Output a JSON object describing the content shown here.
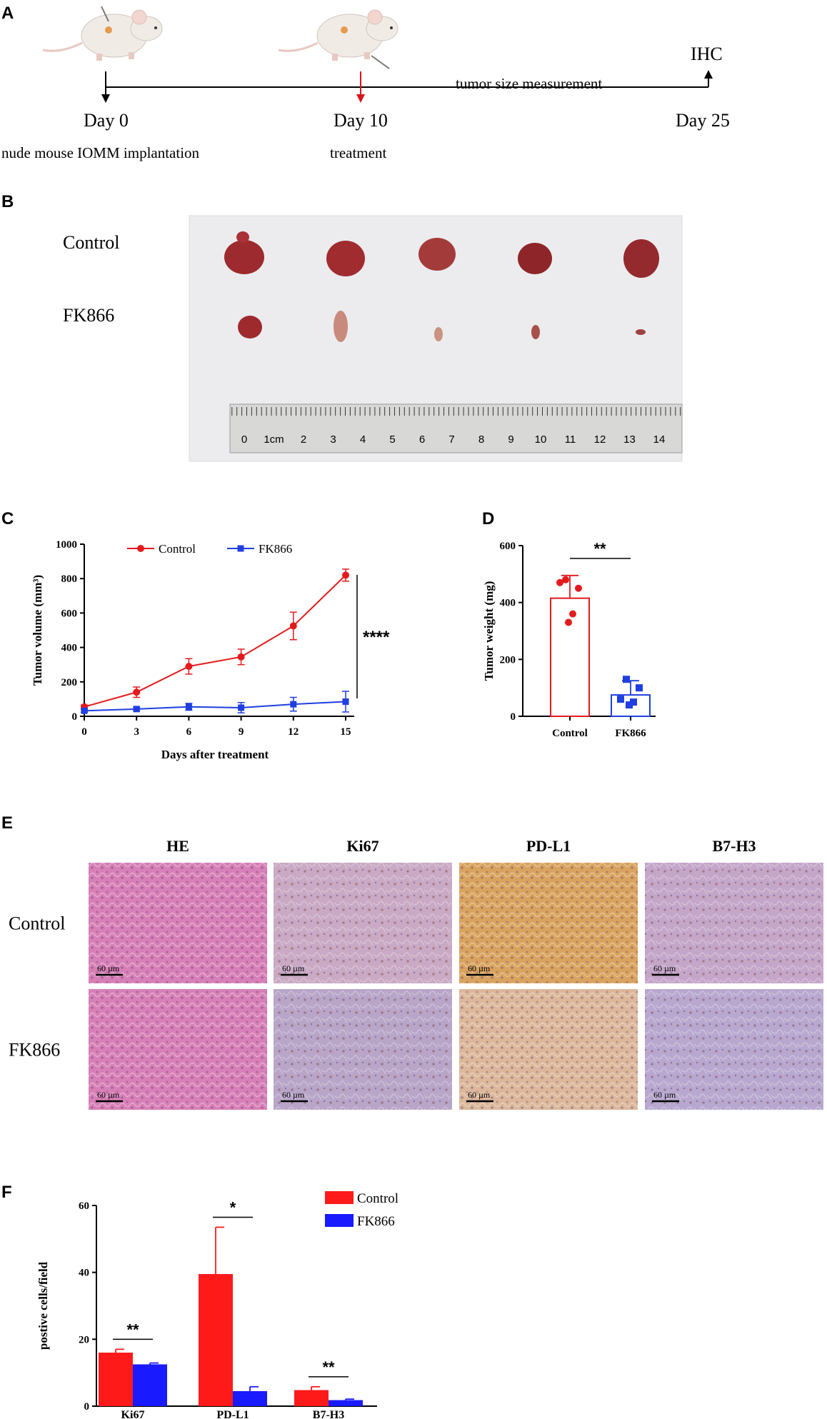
{
  "panels": {
    "A": {
      "letter": "A",
      "day0_label": "Day 0",
      "day10_label": "Day 10",
      "day25_label": "Day 25",
      "day0_caption": "nude mouse IOMM implantation",
      "day10_caption": "treatment",
      "measurement_label": "tumor size measurement",
      "end_label": "IHC",
      "colors": {
        "day0_arrow": "#000000",
        "day10_arrow": "#d9141b",
        "end_arrow": "#000000"
      }
    },
    "B": {
      "letter": "B",
      "row_labels": [
        "Control",
        "FK866"
      ],
      "ruler_ticks": [
        "0",
        "1cm",
        "2",
        "3",
        "4",
        "5",
        "6",
        "7",
        "8",
        "9",
        "10",
        "11",
        "12",
        "13",
        "14"
      ]
    },
    "E": {
      "letter": "E",
      "column_headers": [
        "HE",
        "Ki67",
        "PD-L1",
        "B7-H3"
      ],
      "row_labels": [
        "Control",
        "FK866"
      ],
      "scale_bar_label": "60 µm",
      "tile_colors": {
        "HE": "#d77fb6",
        "Ki67": "#c9a9c4",
        "PD-L1": "#d9a35f",
        "B7-H3": "#c4a6c9"
      }
    }
  },
  "chart_data": [
    {
      "id": "C",
      "letter": "C",
      "type": "line",
      "xlabel": "Days after treatment",
      "ylabel": "Tumor volume (mm³)",
      "x": [
        0,
        3,
        6,
        9,
        12,
        15
      ],
      "xticks": [
        "0",
        "3",
        "6",
        "9",
        "12",
        "15"
      ],
      "yticks": [
        "0",
        "200",
        "400",
        "600",
        "800",
        "1000"
      ],
      "ylim": [
        0,
        1000
      ],
      "xlim": [
        0,
        15
      ],
      "series": [
        {
          "name": "Control",
          "color": "#e41a1c",
          "marker": "circle",
          "values": [
            55,
            140,
            290,
            345,
            525,
            820
          ],
          "errors": [
            10,
            30,
            45,
            45,
            80,
            35
          ]
        },
        {
          "name": "FK866",
          "color": "#1f3fe0",
          "marker": "square",
          "values": [
            32,
            42,
            55,
            50,
            70,
            85
          ],
          "errors": [
            8,
            10,
            20,
            30,
            40,
            60
          ]
        }
      ],
      "significance": "****",
      "legend_position": "top"
    },
    {
      "id": "D",
      "letter": "D",
      "type": "bar",
      "ylabel": "Tumor weight (mg)",
      "categories": [
        "Control",
        "FK866"
      ],
      "yticks": [
        "0",
        "200",
        "400",
        "600"
      ],
      "ylim": [
        0,
        600
      ],
      "values": [
        415,
        75
      ],
      "errors": [
        80,
        50
      ],
      "points": [
        [
          480,
          450,
          470,
          360,
          330
        ],
        [
          130,
          100,
          60,
          50,
          40
        ]
      ],
      "colors": [
        "#e41a1c",
        "#1f3fe0"
      ],
      "significance": "**"
    },
    {
      "id": "F",
      "letter": "F",
      "type": "bar",
      "ylabel": "postive cells/field",
      "categories": [
        "Ki67",
        "PD-L1",
        "B7-H3"
      ],
      "yticks": [
        "0",
        "20",
        "40",
        "60"
      ],
      "ylim": [
        0,
        60
      ],
      "series": [
        {
          "name": "Control",
          "color": "#ff1a1a",
          "values": [
            16,
            39.5,
            4.8
          ],
          "errors": [
            1,
            14,
            1
          ]
        },
        {
          "name": "FK866",
          "color": "#1a1aff",
          "values": [
            12.5,
            4.5,
            1.8
          ],
          "errors": [
            0.4,
            1.3,
            0.3
          ]
        }
      ],
      "significance": [
        "**",
        "*",
        "**"
      ],
      "legend_position": "top-right"
    }
  ]
}
